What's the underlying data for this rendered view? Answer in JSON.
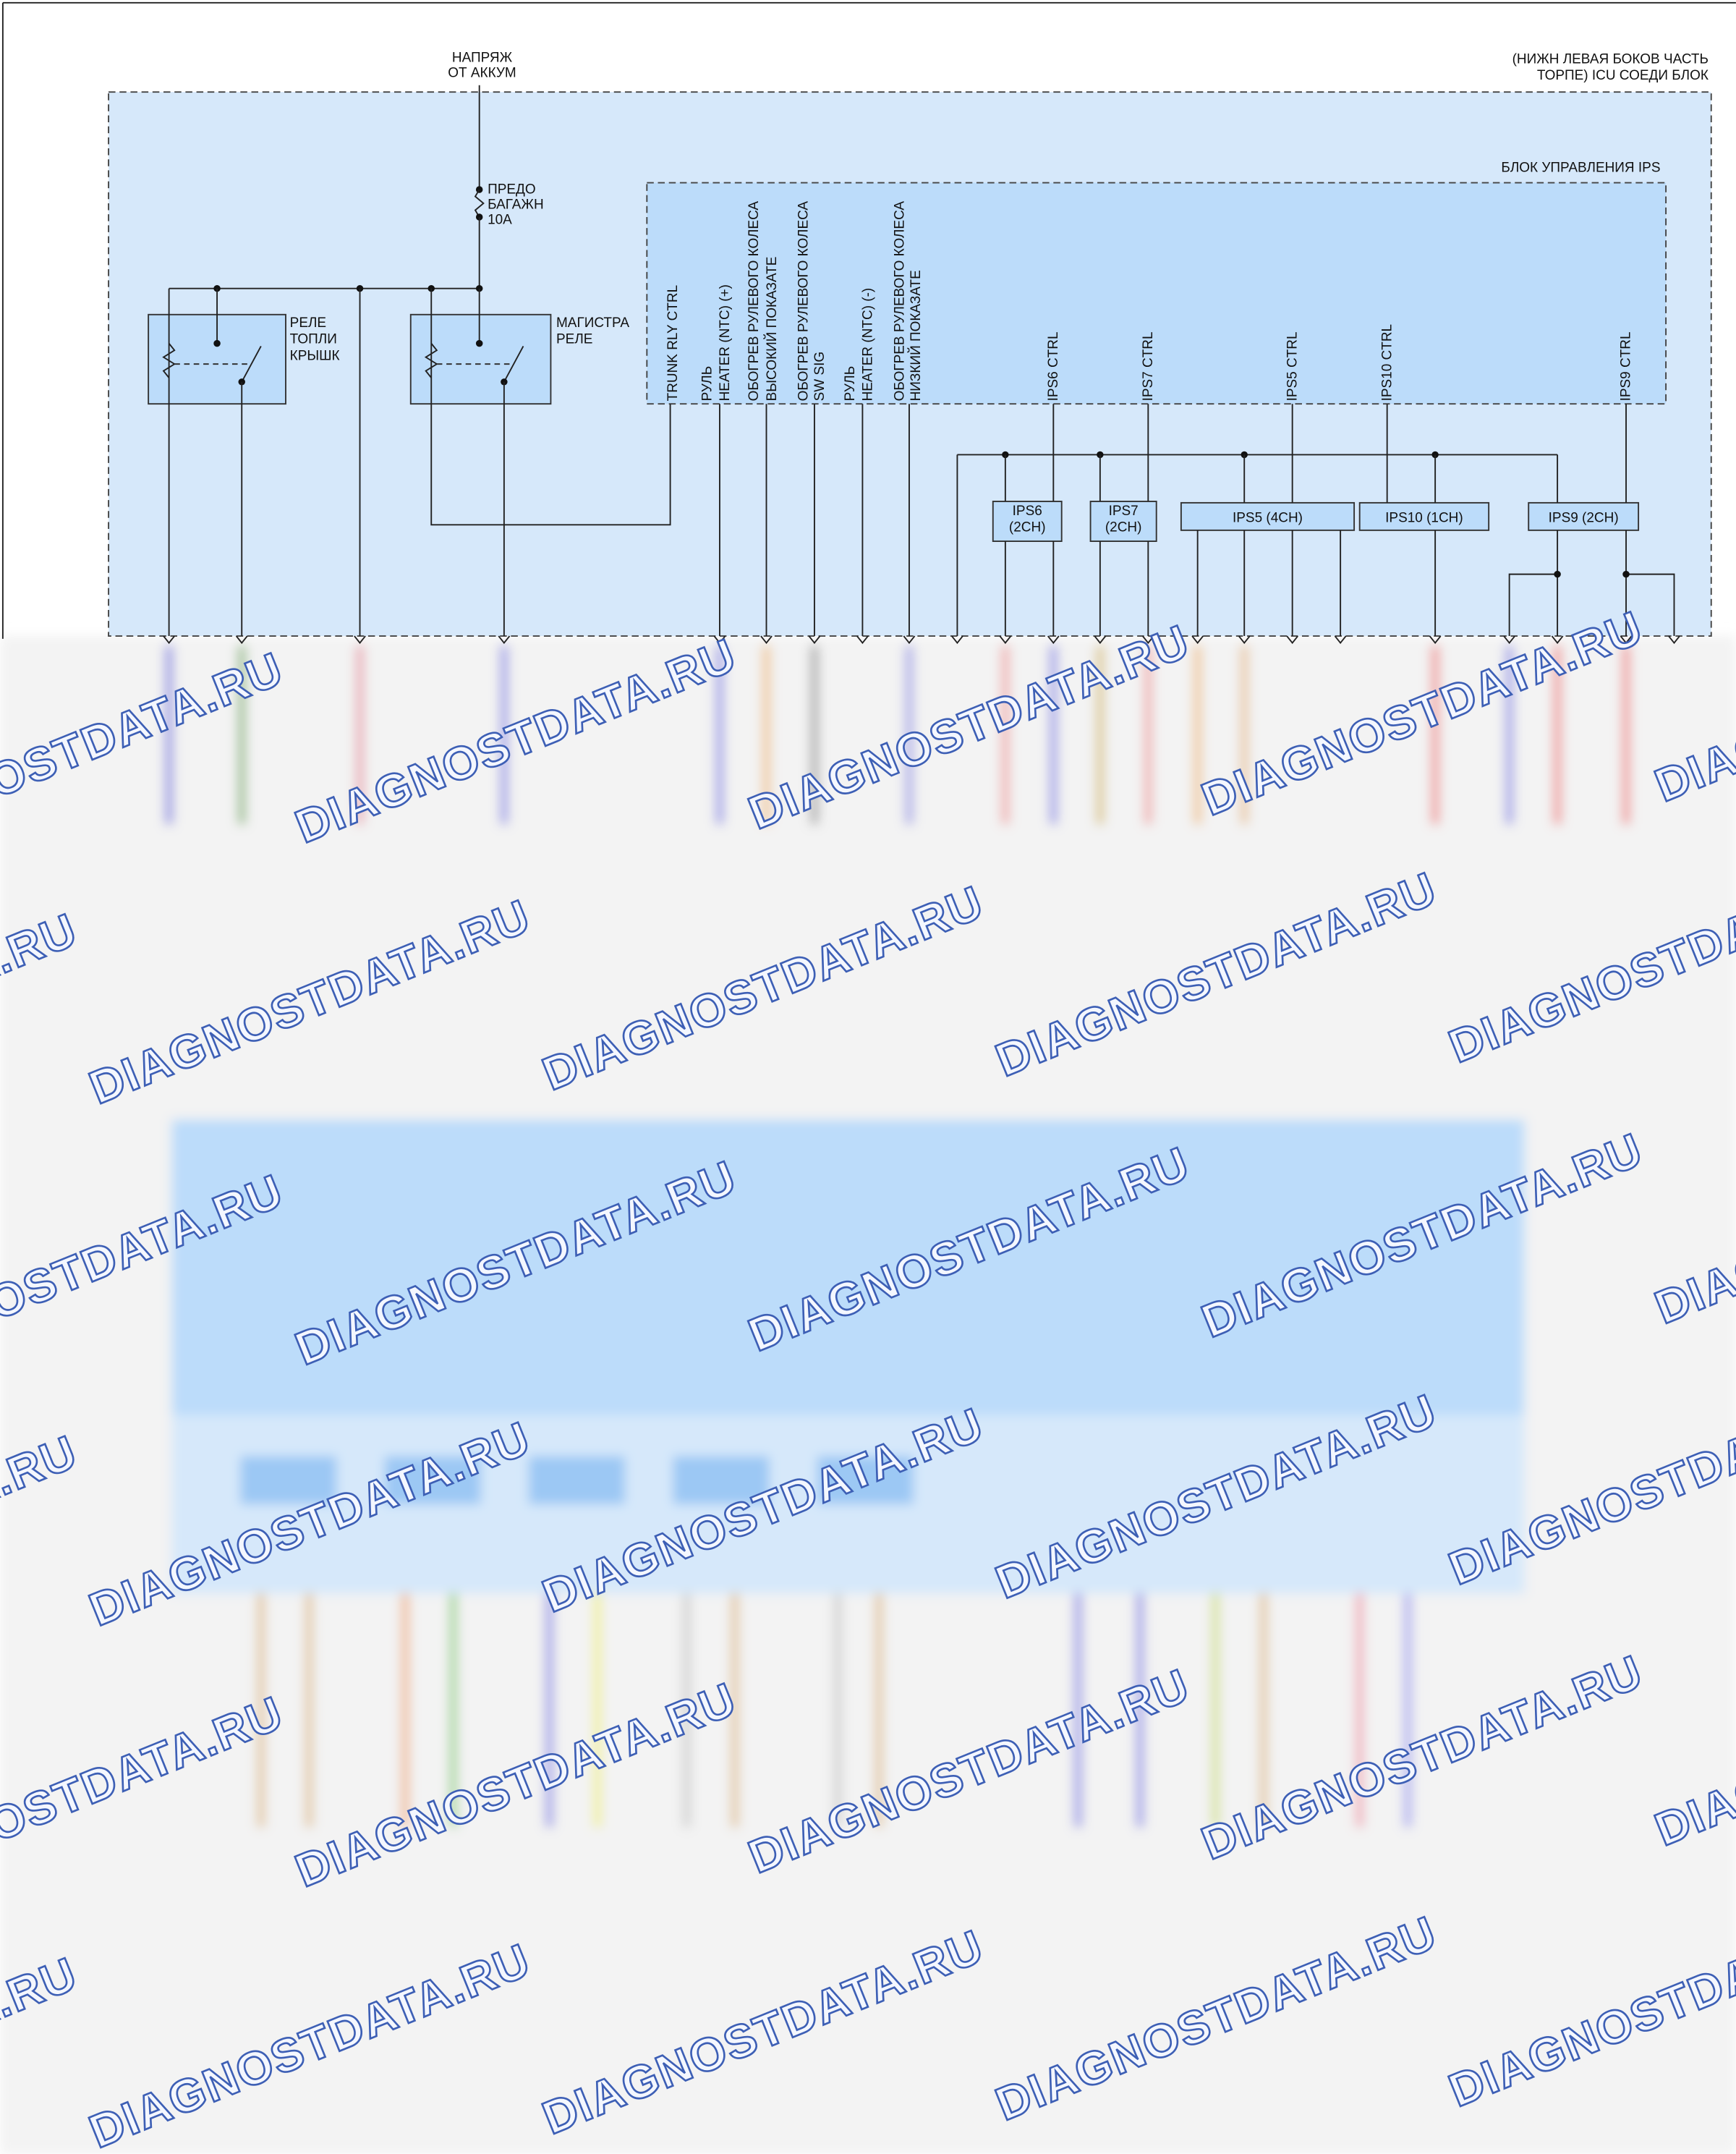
{
  "power_source": [
    "НАПРЯЖ",
    "ОТ АККУМ"
  ],
  "connector_block": [
    "(НИЖН ЛЕВАЯ БОКОВ ЧАСТЬ",
    "ТОРПЕ) ICU СОЕДИ БЛОК"
  ],
  "fuse": [
    "ПРЕДО",
    "БАГАЖН",
    "10A"
  ],
  "relays": [
    {
      "label": [
        "РЕЛЕ",
        "ТОПЛИ",
        "КРЫШК"
      ]
    },
    {
      "label": [
        "МАГИСТРА",
        "РЕЛЕ"
      ]
    }
  ],
  "ips_unit": {
    "title": "БЛОК УПРАВЛЕНИЯ IPS",
    "pins": [
      [
        "TRUNK RLY CTRL"
      ],
      [
        "РУЛЬ",
        "HEATER (NTC) (+)"
      ],
      [
        "ОБОГРЕВ РУЛЕВОГО КОЛЕСА",
        "ВЫСОКИЙ ПОКАЗАТЕ"
      ],
      [
        "ОБОГРЕВ РУЛЕВОГО КОЛЕСА",
        "SW SIG"
      ],
      [
        "РУЛЬ",
        "HEATER (NTC) (-)"
      ],
      [
        "ОБОГРЕВ РУЛЕВОГО КОЛЕСА",
        "НИЗКИЙ ПОКАЗАТЕ"
      ],
      [
        "IPS6 CTRL"
      ],
      [
        "IPS7 CTRL"
      ],
      [
        "IPS5 CTRL"
      ],
      [
        "IPS10 CTRL"
      ],
      [
        "IPS9 CTRL"
      ]
    ]
  },
  "modules": [
    [
      "IPS6",
      "(2CH)"
    ],
    [
      "IPS7",
      "(2CH)"
    ],
    [
      "IPS5 (4CH)"
    ],
    [
      "IPS10 (1CH)"
    ],
    [
      "IPS9 (2CH)"
    ]
  ],
  "watermark": "DIAGNOSTDATA.RU"
}
